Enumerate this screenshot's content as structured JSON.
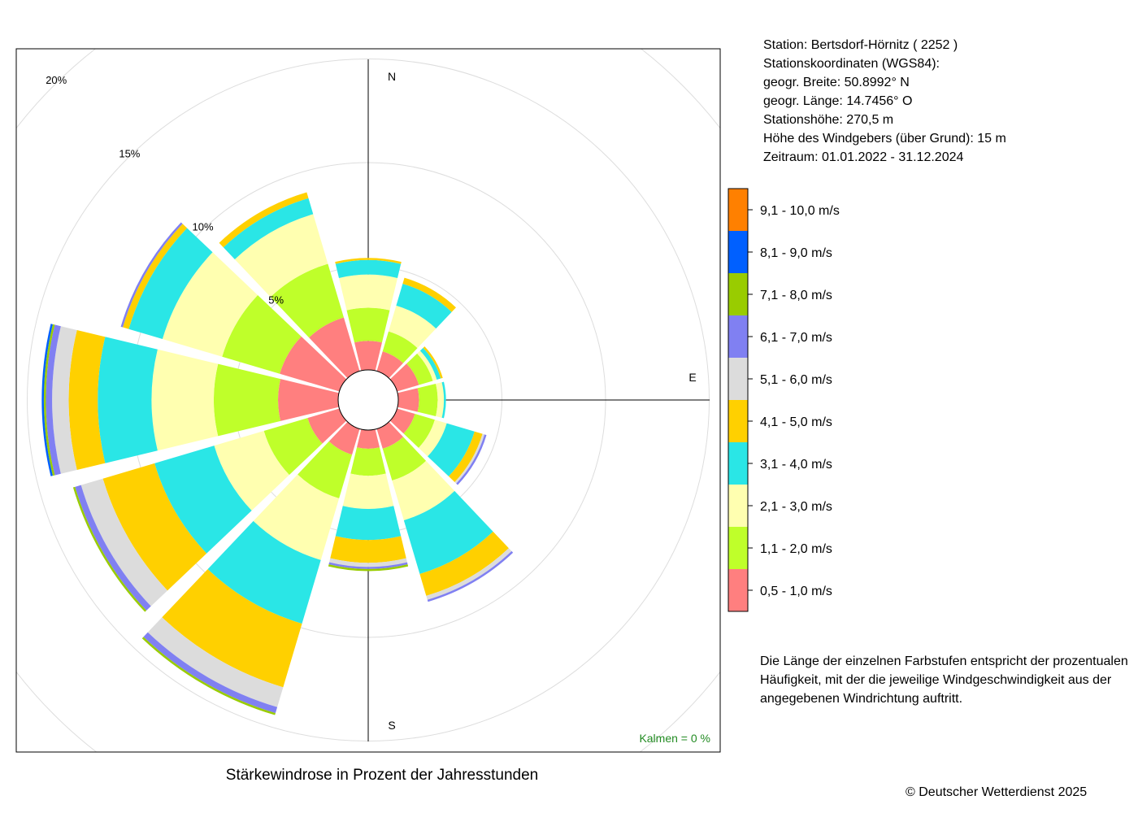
{
  "title": "Stärkewindrose in Prozent der Jahresstunden",
  "station_info": [
    "Station:  Bertsdorf-Hörnitz  ( 2252 )",
    "Stationskoordinaten (WGS84):",
    "geogr. Breite: 50.8992° N",
    "geogr. Länge: 14.7456° O",
    "Stationshöhe: 270,5 m",
    "Höhe des Windgebers (über Grund): 15 m",
    "Zeitraum: 01.01.2022 - 31.12.2024"
  ],
  "note": "Die Länge der einzelnen Farbstufen entspricht der prozentualen Häufigkeit, mit der die jeweilige Windgeschwindigkeit aus der angegebenen Windrichtung auftritt.",
  "copyright": "© Deutscher Wetterdienst  2025",
  "calm": "Kalmen  =  0 %",
  "chart_data": {
    "type": "wind-rose",
    "title": "Stärkewindrose in Prozent der Jahresstunden",
    "compass_labels": [
      "N",
      "E",
      "S"
    ],
    "ring_labels": [
      "5%",
      "10%",
      "15%",
      "20%"
    ],
    "ring_values": [
      5,
      10,
      15,
      20
    ],
    "speed_classes": [
      {
        "label": "0,5 - 1,0 m/s",
        "color": "#FF7F7F"
      },
      {
        "label": "1,1 - 2,0 m/s",
        "color": "#BFFF2A"
      },
      {
        "label": "2,1 - 3,0 m/s",
        "color": "#FFFFB0"
      },
      {
        "label": "3,1 - 4,0 m/s",
        "color": "#2AE6E6"
      },
      {
        "label": "4,1 - 5,0 m/s",
        "color": "#FFD000"
      },
      {
        "label": "5,1 - 6,0 m/s",
        "color": "#DCDCDC"
      },
      {
        "label": "6,1 - 7,0 m/s",
        "color": "#8080F2"
      },
      {
        "label": "7,1 - 8,0 m/s",
        "color": "#99CC00"
      },
      {
        "label": "8,1 - 9,0 m/s",
        "color": "#0060FF"
      },
      {
        "label": "9,1 - 10,0 m/s",
        "color": "#FF8000"
      }
    ],
    "directions_deg": [
      0,
      30,
      60,
      90,
      120,
      150,
      180,
      210,
      240,
      270,
      300,
      330
    ],
    "frequencies": [
      [
        1.4,
        1.6,
        1.6,
        0.7,
        0.1,
        0.0,
        0.0,
        0.0,
        0.0,
        0.0
      ],
      [
        1.0,
        1.0,
        1.3,
        1.1,
        0.3,
        0.0,
        0.0,
        0.0,
        0.0,
        0.0
      ],
      [
        1.1,
        0.7,
        0.2,
        0.2,
        0.1,
        0.0,
        0.0,
        0.0,
        0.0,
        0.0
      ],
      [
        1.0,
        0.9,
        0.3,
        0.1,
        0.0,
        0.0,
        0.0,
        0.0,
        0.0,
        0.0
      ],
      [
        0.9,
        1.0,
        0.6,
        1.4,
        0.4,
        0.1,
        0.1,
        0.0,
        0.0,
        0.0
      ],
      [
        1.0,
        1.6,
        2.0,
        2.7,
        1.1,
        0.2,
        0.1,
        0.0,
        0.0,
        0.0
      ],
      [
        0.9,
        1.3,
        1.6,
        1.5,
        1.1,
        0.2,
        0.1,
        0.1,
        0.0,
        0.0
      ],
      [
        1.3,
        2.2,
        3.1,
        3.2,
        3.2,
        1.0,
        0.3,
        0.1,
        0.0,
        0.0
      ],
      [
        1.6,
        2.2,
        2.5,
        3.0,
        2.6,
        1.1,
        0.3,
        0.1,
        0.0,
        0.0
      ],
      [
        2.9,
        3.1,
        3.0,
        2.6,
        1.4,
        0.8,
        0.3,
        0.1,
        0.1,
        0.0
      ],
      [
        3.0,
        2.9,
        3.0,
        1.7,
        0.3,
        0.0,
        0.1,
        0.0,
        0.0,
        0.0
      ],
      [
        2.7,
        2.7,
        2.5,
        0.8,
        0.3,
        0.0,
        0.0,
        0.0,
        0.0,
        0.0
      ]
    ]
  }
}
